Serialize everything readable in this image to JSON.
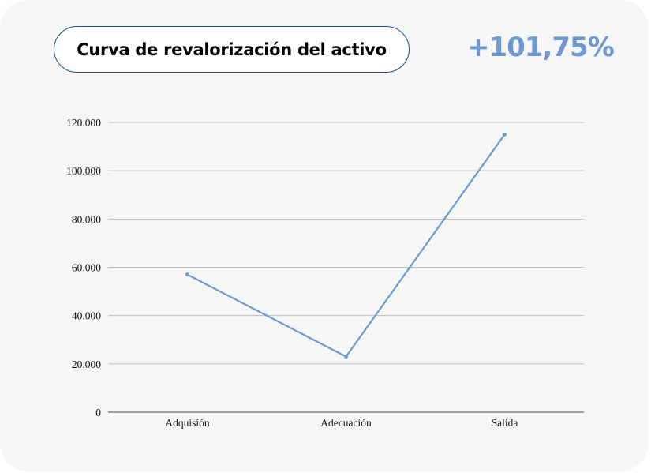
{
  "header": {
    "title": "Curva de revalorización del activo",
    "change": "+101,75%"
  },
  "colors": {
    "line": "#6e98d2",
    "accent": "#6e98d2",
    "pill_border": "#1f4f8a",
    "grid": "#bdbdbd",
    "background": "#f6f6f6"
  },
  "chart_data": {
    "type": "line",
    "categories": [
      "Adquisión",
      "Adecuación",
      "Salida"
    ],
    "values": [
      57000,
      23000,
      115000
    ],
    "ylim": [
      0,
      120000
    ],
    "yticks": [
      0,
      20000,
      40000,
      60000,
      80000,
      100000,
      120000
    ],
    "ytick_labels": [
      "0",
      "20.000",
      "40.000",
      "60.000",
      "80.000",
      "100.000",
      "120.000"
    ],
    "grid": true,
    "legend": "none",
    "title": "",
    "xlabel": "",
    "ylabel": ""
  }
}
